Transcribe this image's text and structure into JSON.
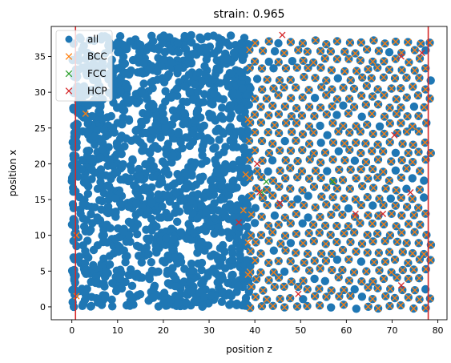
{
  "chart_data": {
    "type": "scatter",
    "title": "strain: 0.965",
    "xlabel": "position z",
    "ylabel": "position x",
    "xlim": [
      -4.5,
      82.0
    ],
    "ylim": [
      -1.8,
      39.2
    ],
    "xticks": [
      0,
      10,
      20,
      30,
      40,
      50,
      60,
      70,
      80
    ],
    "yticks": [
      0,
      5,
      10,
      15,
      20,
      25,
      30,
      35
    ],
    "grid": false,
    "legend_position": "top-left",
    "vertical_lines": [
      {
        "x": 0.8,
        "color": "#d62728"
      },
      {
        "x": 77.9,
        "color": "#d62728"
      }
    ],
    "series": [
      {
        "name": "all",
        "marker": "circle",
        "color": "#1f77b4",
        "regions": {
          "amorphous_x": [
            0,
            39
          ],
          "crystal_x": [
            39,
            78.5
          ],
          "y_range": [
            0,
            38
          ],
          "crystal_spacing": 2.55
        }
      },
      {
        "name": "BCC",
        "marker": "x",
        "color": "#ff7f0e",
        "region_x": [
          39,
          78.5
        ],
        "outliers": [
          [
            3,
            27
          ],
          [
            1,
            10
          ],
          [
            1,
            1.5
          ],
          [
            38.5,
            26.2
          ],
          [
            38,
            18.5
          ],
          [
            37.5,
            13.5
          ],
          [
            38.5,
            9
          ],
          [
            38.5,
            4.5
          ]
        ]
      },
      {
        "name": "FCC",
        "marker": "x",
        "color": "#2ca02c",
        "points": [
          [
            41.5,
            16
          ],
          [
            42.5,
            17.5
          ],
          [
            57,
            17.5
          ]
        ]
      },
      {
        "name": "HCP",
        "marker": "x",
        "color": "#d62728",
        "points": [
          [
            46,
            38
          ],
          [
            36.5,
            11.8
          ],
          [
            45.5,
            14.5
          ],
          [
            40.5,
            20
          ],
          [
            41,
            16
          ],
          [
            49.5,
            1.8
          ],
          [
            62,
            13
          ],
          [
            68,
            13
          ],
          [
            72,
            35
          ],
          [
            70.5,
            24
          ],
          [
            72,
            3
          ],
          [
            76.5,
            35.5
          ],
          [
            74,
            16
          ]
        ]
      }
    ]
  }
}
